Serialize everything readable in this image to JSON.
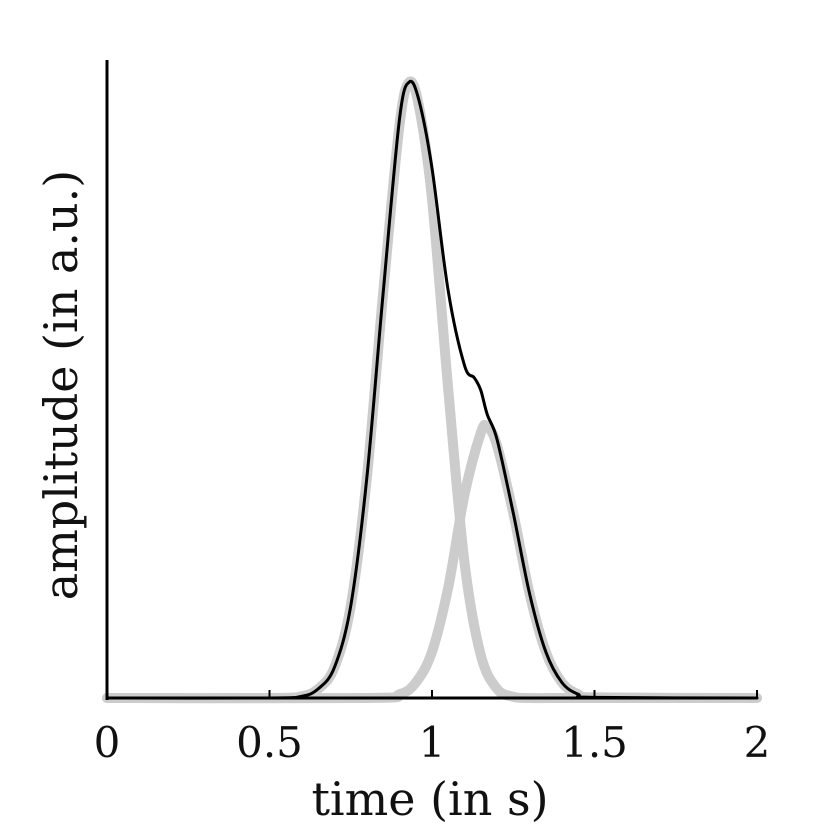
{
  "chart_data": {
    "type": "line",
    "title": "",
    "xlabel": "time (in s)",
    "ylabel": "amplitude (in a.u.)",
    "xlim": [
      0,
      2
    ],
    "ylim": [
      0,
      1
    ],
    "xticks": [
      0,
      0.5,
      1,
      1.5,
      2
    ],
    "xtick_labels": [
      "0",
      "0.5",
      "1",
      "1.5",
      "2"
    ],
    "grid": false,
    "legend": "none",
    "series": [
      {
        "color": "#cccccc",
        "x": [
          0,
          0.5,
          0.6,
          0.65,
          0.7,
          0.75,
          0.8,
          0.85,
          0.9,
          0.93,
          0.96,
          1.0,
          1.05,
          1.1,
          1.15,
          1.2,
          1.25,
          1.3,
          1.4,
          1.5,
          2.0
        ],
        "y": [
          0,
          0,
          0.003,
          0.015,
          0.05,
          0.15,
          0.36,
          0.66,
          0.93,
          1.0,
          0.96,
          0.81,
          0.5,
          0.22,
          0.07,
          0.015,
          0.002,
          0,
          0,
          0,
          0
        ]
      },
      {
        "color": "#cccccc",
        "x": [
          0,
          0.8,
          0.9,
          0.95,
          1.0,
          1.05,
          1.1,
          1.15,
          1.17,
          1.2,
          1.25,
          1.3,
          1.35,
          1.4,
          1.45,
          1.5,
          2.0
        ],
        "y": [
          0,
          0,
          0.006,
          0.025,
          0.075,
          0.18,
          0.33,
          0.43,
          0.44,
          0.41,
          0.3,
          0.17,
          0.075,
          0.025,
          0.006,
          0.001,
          0
        ]
      },
      {
        "color": "#000000",
        "x": [
          0,
          0.5,
          0.6,
          0.65,
          0.7,
          0.75,
          0.8,
          0.85,
          0.9,
          0.93,
          0.96,
          1.0,
          1.05,
          1.1,
          1.13,
          1.15,
          1.17,
          1.2,
          1.25,
          1.3,
          1.35,
          1.4,
          1.45,
          1.5,
          2.0
        ],
        "y": [
          0,
          0,
          0.003,
          0.015,
          0.05,
          0.15,
          0.36,
          0.66,
          0.94,
          1.0,
          0.97,
          0.86,
          0.66,
          0.54,
          0.52,
          0.5,
          0.46,
          0.42,
          0.3,
          0.17,
          0.075,
          0.025,
          0.006,
          0.001,
          0
        ]
      }
    ]
  }
}
